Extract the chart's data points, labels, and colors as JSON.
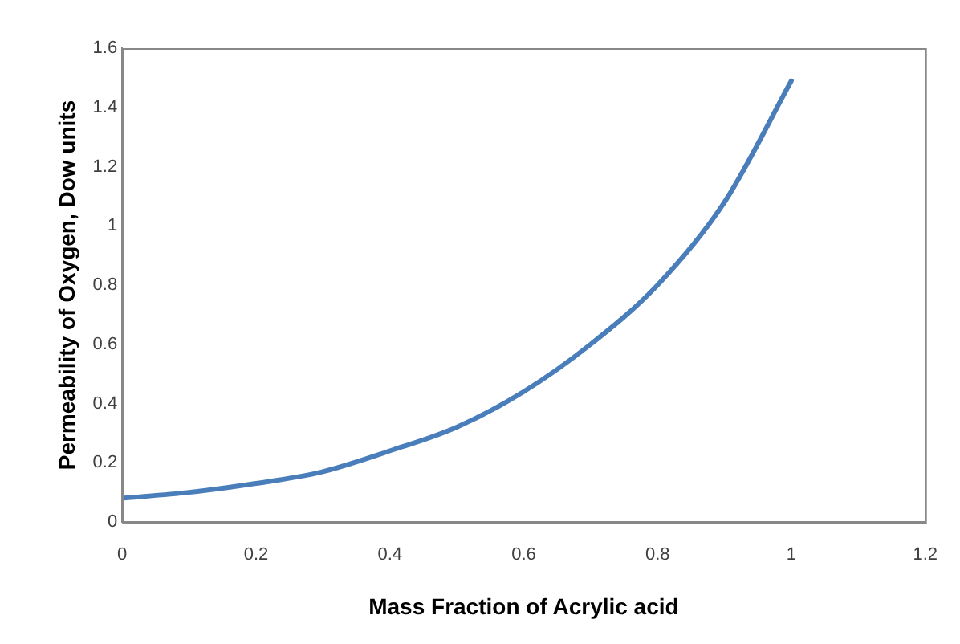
{
  "chart_data": {
    "type": "line",
    "xlabel": "Mass Fraction of Acrylic acid",
    "ylabel": "Permeability of Oxygen, Dow units",
    "x": [
      0,
      0.1,
      0.2,
      0.3,
      0.4,
      0.5,
      0.6,
      0.7,
      0.8,
      0.9,
      1.0
    ],
    "series": [
      {
        "color": "#4a7ebb",
        "values": [
          0.08,
          0.1,
          0.13,
          0.17,
          0.24,
          0.32,
          0.44,
          0.6,
          0.8,
          1.08,
          1.49
        ]
      }
    ],
    "xlim": [
      0,
      1.2
    ],
    "xticks": [
      0,
      0.2,
      0.4,
      0.6,
      0.8,
      1,
      1.2
    ],
    "ylim": [
      0,
      1.6
    ],
    "yticks": [
      0,
      0.2,
      0.4,
      0.6,
      0.8,
      1,
      1.2,
      1.4,
      1.6
    ],
    "grid": false,
    "legend": false,
    "marker": "none",
    "line_style": "solid"
  }
}
